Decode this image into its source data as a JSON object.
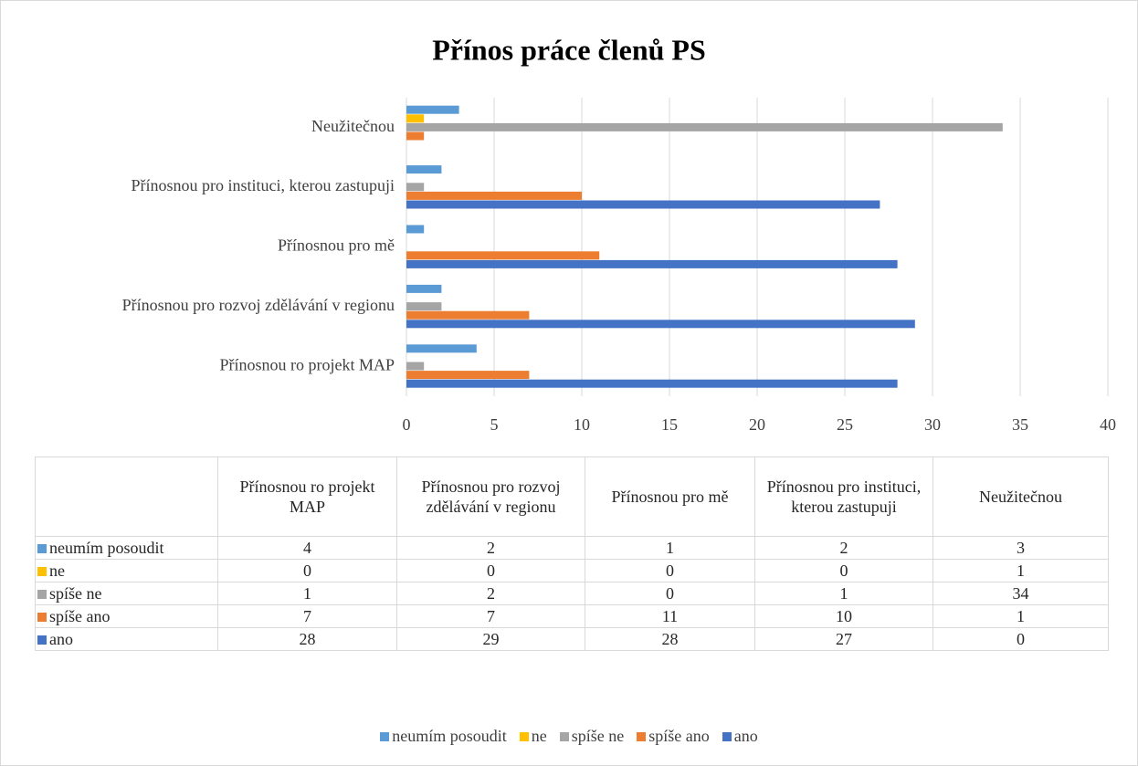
{
  "chart_data": {
    "type": "hbar",
    "title": "Přínos práce členů PS",
    "categories": [
      "Přínosnou ro projekt MAP",
      "Přínosnou pro rozvoj zdělávání v regionu",
      "Přínosnou pro mě",
      "Přínosnou pro instituci, kterou zastupuji",
      "Neužitečnou"
    ],
    "series": [
      {
        "name": "neumím posoudit",
        "color": "#5b9bd5",
        "values": [
          4,
          2,
          1,
          2,
          3
        ]
      },
      {
        "name": "ne",
        "color": "#ffc000",
        "values": [
          0,
          0,
          0,
          0,
          1
        ]
      },
      {
        "name": "spíše ne",
        "color": "#a5a5a5",
        "values": [
          1,
          2,
          0,
          1,
          34
        ]
      },
      {
        "name": "spíše ano",
        "color": "#ed7d31",
        "values": [
          7,
          7,
          11,
          10,
          1
        ]
      },
      {
        "name": "ano",
        "color": "#4472c4",
        "values": [
          28,
          29,
          28,
          27,
          0
        ]
      }
    ],
    "xlim": [
      0,
      40
    ],
    "xticks": [
      0,
      5,
      10,
      15,
      20,
      25,
      30,
      35,
      40
    ],
    "grid": true,
    "legend": "bottom"
  }
}
